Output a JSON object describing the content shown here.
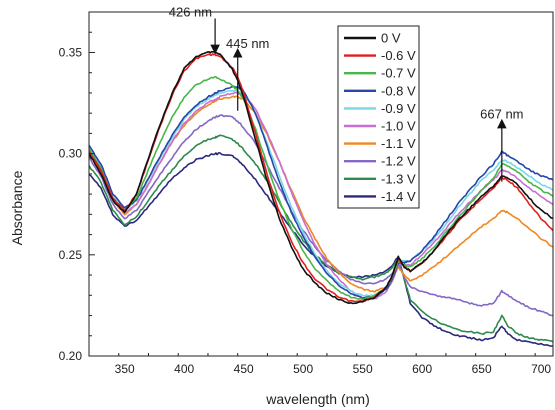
{
  "chart_data": {
    "type": "line",
    "xlabel": "wavelength (nm)",
    "ylabel": "Absorbance",
    "xlim": [
      320,
      710
    ],
    "ylim": [
      0.2,
      0.37
    ],
    "x_ticks": [
      350,
      400,
      450,
      500,
      550,
      600,
      650,
      700
    ],
    "y_ticks": [
      0.2,
      0.25,
      0.3,
      0.35
    ],
    "grid": false,
    "legend_position": "top-right",
    "x": [
      320,
      330,
      340,
      350,
      360,
      370,
      380,
      390,
      400,
      410,
      420,
      426,
      430,
      440,
      445,
      450,
      460,
      470,
      480,
      490,
      500,
      510,
      520,
      530,
      540,
      550,
      560,
      570,
      575,
      580,
      585,
      590,
      600,
      610,
      620,
      630,
      640,
      650,
      660,
      667,
      672,
      680,
      690,
      700,
      710
    ],
    "series": [
      {
        "name": "0 V",
        "color": "#111111",
        "values": [
          0.3,
          0.29,
          0.277,
          0.271,
          0.28,
          0.298,
          0.315,
          0.33,
          0.342,
          0.348,
          0.35,
          0.35,
          0.349,
          0.342,
          0.336,
          0.328,
          0.307,
          0.286,
          0.268,
          0.254,
          0.243,
          0.236,
          0.231,
          0.228,
          0.226,
          0.227,
          0.229,
          0.234,
          0.24,
          0.249,
          0.244,
          0.242,
          0.246,
          0.252,
          0.26,
          0.267,
          0.273,
          0.279,
          0.284,
          0.289,
          0.288,
          0.285,
          0.278,
          0.272,
          0.268
        ]
      },
      {
        "name": "-0.6 V",
        "color": "#e02020",
        "values": [
          0.301,
          0.292,
          0.278,
          0.272,
          0.28,
          0.297,
          0.314,
          0.329,
          0.341,
          0.347,
          0.349,
          0.349,
          0.348,
          0.343,
          0.338,
          0.33,
          0.31,
          0.289,
          0.271,
          0.257,
          0.246,
          0.238,
          0.233,
          0.229,
          0.227,
          0.227,
          0.229,
          0.234,
          0.24,
          0.248,
          0.244,
          0.242,
          0.246,
          0.252,
          0.259,
          0.266,
          0.272,
          0.278,
          0.283,
          0.288,
          0.287,
          0.283,
          0.275,
          0.268,
          0.262
        ]
      },
      {
        "name": "-0.7 V",
        "color": "#48b648",
        "values": [
          0.302,
          0.293,
          0.278,
          0.272,
          0.278,
          0.292,
          0.306,
          0.318,
          0.328,
          0.334,
          0.337,
          0.338,
          0.337,
          0.334,
          0.331,
          0.327,
          0.312,
          0.294,
          0.277,
          0.263,
          0.252,
          0.243,
          0.237,
          0.232,
          0.229,
          0.228,
          0.23,
          0.234,
          0.239,
          0.247,
          0.245,
          0.244,
          0.248,
          0.254,
          0.261,
          0.268,
          0.275,
          0.282,
          0.288,
          0.295,
          0.294,
          0.291,
          0.286,
          0.282,
          0.279
        ]
      },
      {
        "name": "-0.8 V",
        "color": "#2646a8",
        "values": [
          0.304,
          0.295,
          0.28,
          0.273,
          0.277,
          0.288,
          0.299,
          0.309,
          0.318,
          0.324,
          0.328,
          0.33,
          0.331,
          0.333,
          0.333,
          0.331,
          0.32,
          0.303,
          0.286,
          0.271,
          0.259,
          0.249,
          0.241,
          0.235,
          0.231,
          0.229,
          0.229,
          0.233,
          0.238,
          0.246,
          0.246,
          0.247,
          0.252,
          0.259,
          0.267,
          0.275,
          0.282,
          0.289,
          0.295,
          0.301,
          0.299,
          0.296,
          0.292,
          0.289,
          0.287
        ]
      },
      {
        "name": "-0.9 V",
        "color": "#7ad7e6",
        "values": [
          0.303,
          0.294,
          0.279,
          0.272,
          0.277,
          0.287,
          0.298,
          0.308,
          0.317,
          0.323,
          0.327,
          0.329,
          0.33,
          0.331,
          0.331,
          0.33,
          0.32,
          0.305,
          0.289,
          0.274,
          0.261,
          0.25,
          0.242,
          0.236,
          0.232,
          0.23,
          0.23,
          0.234,
          0.239,
          0.247,
          0.247,
          0.247,
          0.252,
          0.258,
          0.265,
          0.273,
          0.28,
          0.287,
          0.292,
          0.297,
          0.296,
          0.293,
          0.289,
          0.285,
          0.282
        ]
      },
      {
        "name": "-1.0 V",
        "color": "#c86ed4",
        "values": [
          0.302,
          0.293,
          0.278,
          0.271,
          0.275,
          0.285,
          0.296,
          0.306,
          0.315,
          0.321,
          0.325,
          0.327,
          0.328,
          0.33,
          0.33,
          0.329,
          0.322,
          0.31,
          0.296,
          0.281,
          0.267,
          0.255,
          0.245,
          0.238,
          0.232,
          0.229,
          0.228,
          0.232,
          0.237,
          0.245,
          0.245,
          0.245,
          0.25,
          0.256,
          0.263,
          0.27,
          0.276,
          0.282,
          0.287,
          0.292,
          0.291,
          0.288,
          0.283,
          0.279,
          0.275
        ]
      },
      {
        "name": "-1.1 V",
        "color": "#f0881e",
        "values": [
          0.3,
          0.291,
          0.277,
          0.27,
          0.275,
          0.285,
          0.296,
          0.306,
          0.314,
          0.32,
          0.324,
          0.326,
          0.327,
          0.328,
          0.328,
          0.327,
          0.32,
          0.309,
          0.296,
          0.282,
          0.269,
          0.258,
          0.248,
          0.241,
          0.236,
          0.233,
          0.232,
          0.234,
          0.238,
          0.244,
          0.24,
          0.237,
          0.24,
          0.244,
          0.249,
          0.254,
          0.259,
          0.264,
          0.268,
          0.272,
          0.271,
          0.268,
          0.263,
          0.258,
          0.254
        ]
      },
      {
        "name": "-1.2 V",
        "color": "#8467c4",
        "values": [
          0.298,
          0.289,
          0.275,
          0.268,
          0.272,
          0.281,
          0.29,
          0.298,
          0.306,
          0.312,
          0.316,
          0.318,
          0.319,
          0.318,
          0.316,
          0.313,
          0.305,
          0.294,
          0.283,
          0.272,
          0.262,
          0.254,
          0.247,
          0.242,
          0.238,
          0.236,
          0.236,
          0.238,
          0.241,
          0.246,
          0.239,
          0.234,
          0.232,
          0.23,
          0.229,
          0.228,
          0.226,
          0.225,
          0.226,
          0.232,
          0.23,
          0.227,
          0.224,
          0.222,
          0.22
        ]
      },
      {
        "name": "-1.3 V",
        "color": "#2f8a4e",
        "values": [
          0.294,
          0.286,
          0.272,
          0.265,
          0.269,
          0.277,
          0.285,
          0.292,
          0.299,
          0.304,
          0.307,
          0.308,
          0.309,
          0.307,
          0.305,
          0.302,
          0.295,
          0.286,
          0.276,
          0.266,
          0.257,
          0.25,
          0.245,
          0.241,
          0.239,
          0.238,
          0.239,
          0.241,
          0.244,
          0.248,
          0.238,
          0.228,
          0.222,
          0.218,
          0.215,
          0.213,
          0.212,
          0.211,
          0.212,
          0.22,
          0.215,
          0.211,
          0.209,
          0.208,
          0.207
        ]
      },
      {
        "name": "-1.4 V",
        "color": "#2a2a7a",
        "values": [
          0.29,
          0.283,
          0.27,
          0.264,
          0.267,
          0.274,
          0.281,
          0.288,
          0.293,
          0.297,
          0.299,
          0.3,
          0.3,
          0.299,
          0.297,
          0.294,
          0.287,
          0.279,
          0.271,
          0.263,
          0.255,
          0.249,
          0.244,
          0.241,
          0.239,
          0.239,
          0.24,
          0.242,
          0.245,
          0.249,
          0.238,
          0.226,
          0.219,
          0.215,
          0.212,
          0.21,
          0.209,
          0.208,
          0.209,
          0.215,
          0.211,
          0.208,
          0.207,
          0.206,
          0.205
        ]
      }
    ],
    "annotations": [
      {
        "text": "426 nm",
        "x": 426,
        "y": 0.35,
        "arrow": "down"
      },
      {
        "text": "445 nm",
        "x": 445,
        "y": 0.336,
        "arrow": "up"
      },
      {
        "text": "667 nm",
        "x": 667,
        "y": 0.301,
        "arrow": "up"
      }
    ]
  }
}
